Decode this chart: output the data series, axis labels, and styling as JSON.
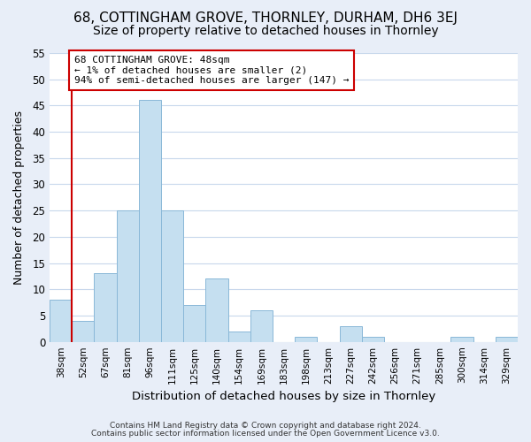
{
  "title": "68, COTTINGHAM GROVE, THORNLEY, DURHAM, DH6 3EJ",
  "subtitle": "Size of property relative to detached houses in Thornley",
  "xlabel": "Distribution of detached houses by size in Thornley",
  "ylabel": "Number of detached properties",
  "footer_line1": "Contains HM Land Registry data © Crown copyright and database right 2024.",
  "footer_line2": "Contains public sector information licensed under the Open Government Licence v3.0.",
  "bin_labels": [
    "38sqm",
    "52sqm",
    "67sqm",
    "81sqm",
    "96sqm",
    "111sqm",
    "125sqm",
    "140sqm",
    "154sqm",
    "169sqm",
    "183sqm",
    "198sqm",
    "213sqm",
    "227sqm",
    "242sqm",
    "256sqm",
    "271sqm",
    "285sqm",
    "300sqm",
    "314sqm",
    "329sqm"
  ],
  "bar_values": [
    8,
    4,
    13,
    25,
    46,
    25,
    7,
    12,
    2,
    6,
    0,
    1,
    0,
    3,
    1,
    0,
    0,
    0,
    1,
    0,
    1
  ],
  "bar_color": "#c5dff0",
  "bar_edge_color": "#8ab8d8",
  "highlight_line_color": "#cc0000",
  "annotation_line1": "68 COTTINGHAM GROVE: 48sqm",
  "annotation_line2": "← 1% of detached houses are smaller (2)",
  "annotation_line3": "94% of semi-detached houses are larger (147) →",
  "annotation_box_edge_color": "#cc0000",
  "annotation_box_facecolor": "white",
  "ylim": [
    0,
    55
  ],
  "yticks": [
    0,
    5,
    10,
    15,
    20,
    25,
    30,
    35,
    40,
    45,
    50,
    55
  ],
  "background_color": "#e8eef8",
  "plot_background_color": "white",
  "title_fontsize": 11,
  "subtitle_fontsize": 10,
  "grid_color": "#c8d8ec"
}
